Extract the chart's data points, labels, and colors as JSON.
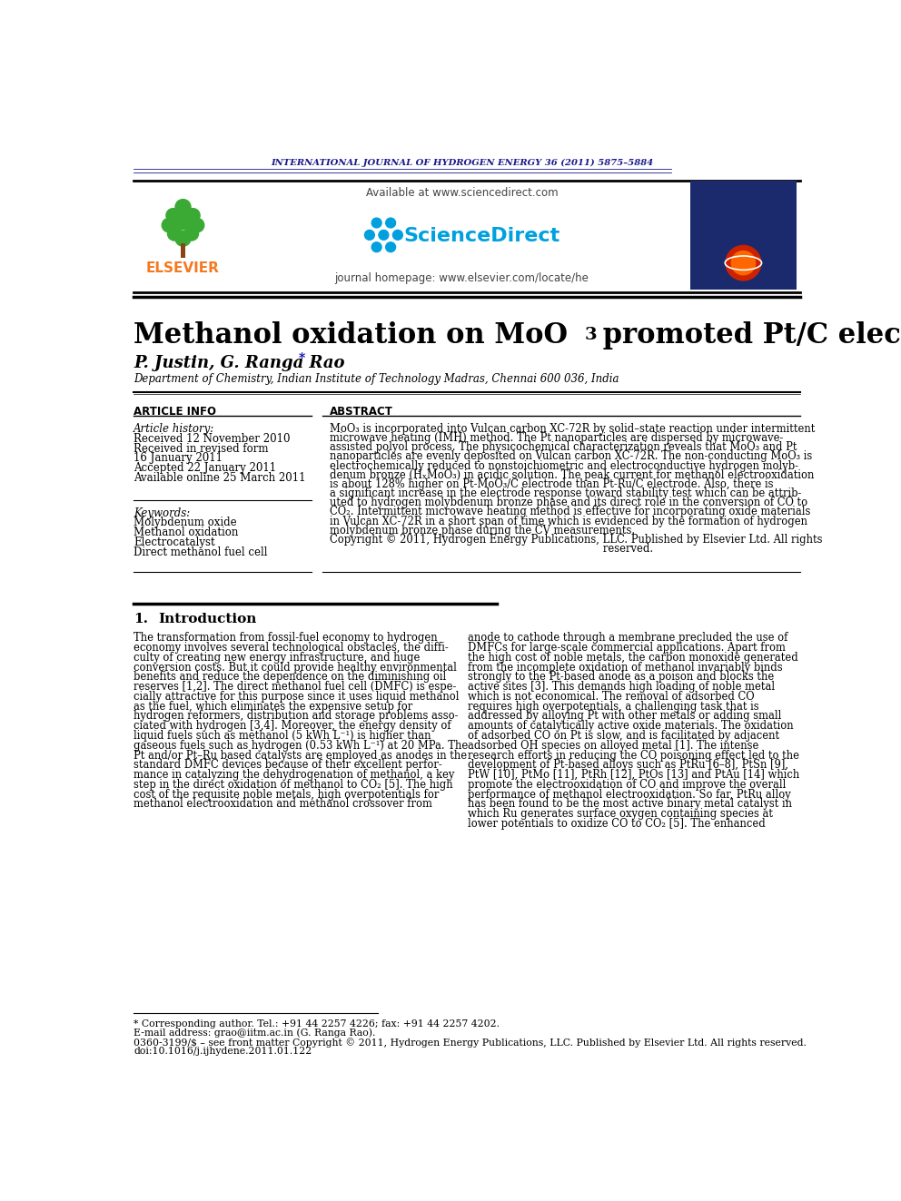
{
  "journal_header": "INTERNATIONAL JOURNAL OF HYDROGEN ENERGY 36 (2011) 5875–5884",
  "journal_header_color": "#1a1a8c",
  "title_part1": "Methanol oxidation on MoO",
  "title_sub": "3",
  "title_part2": " promoted Pt/C electrocatalyst",
  "authors": "P. Justin, G. Ranga Rao",
  "author_star": "*",
  "affiliation": "Department of Chemistry, Indian Institute of Technology Madras, Chennai 600 036, India",
  "article_info_header": "ARTICLE INFO",
  "abstract_header": "ABSTRACT",
  "article_history_label": "Article history:",
  "history_items": [
    "Received 12 November 2010",
    "Received in revised form",
    "16 January 2011",
    "Accepted 22 January 2011",
    "Available online 25 March 2011"
  ],
  "keywords_label": "Keywords:",
  "keywords": [
    "Molybdenum oxide",
    "Methanol oxidation",
    "Electrocatalyst",
    "Direct methanol fuel cell"
  ],
  "abstract_lines": [
    "MoO₃ is incorporated into Vulcan carbon XC-72R by solid–state reaction under intermittent",
    "microwave heating (IMH) method. The Pt nanoparticles are dispersed by microwave-",
    "assisted polyol process. The physicochemical characterization reveals that MoO₃ and Pt",
    "nanoparticles are evenly deposited on Vulcan carbon XC-72R. The non-conducting MoO₃ is",
    "electrochemically reduced to nonstoichiometric and electroconductive hydrogen molyb-",
    "denum bronze (HₓMoO₃) in acidic solution. The peak current for methanol electrooxidation",
    "is about 128% higher on Pt-MoO₃/C electrode than Pt-Ru/C electrode. Also, there is",
    "a significant increase in the electrode response toward stability test which can be attrib-",
    "uted to hydrogen molybdenum bronze phase and its direct role in the conversion of CO to",
    "CO₂. Intermittent microwave heating method is effective for incorporating oxide materials",
    "in Vulcan XC-72R in a short span of time which is evidenced by the formation of hydrogen",
    "molybdenum bronze phase during the CV measurements.",
    "Copyright © 2011, Hydrogen Energy Publications, LLC. Published by Elsevier Ltd. All rights",
    "                                                                                   reserved."
  ],
  "col1_lines": [
    "The transformation from fossil-fuel economy to hydrogen",
    "economy involves several technological obstacles, the diffi-",
    "culty of creating new energy infrastructure, and huge",
    "conversion costs. But it could provide healthy environmental",
    "benefits and reduce the dependence on the diminishing oil",
    "reserves [1,2]. The direct methanol fuel cell (DMFC) is espe-",
    "cially attractive for this purpose since it uses liquid methanol",
    "as the fuel, which eliminates the expensive setup for",
    "hydrogen reformers, distribution and storage problems asso-",
    "ciated with hydrogen [3,4]. Moreover, the energy density of",
    "liquid fuels such as methanol (5 kWh L⁻¹) is higher than",
    "gaseous fuels such as hydrogen (0.53 kWh L⁻¹) at 20 MPa. The",
    "Pt and/or Pt–Ru based catalysts are employed as anodes in the",
    "standard DMFC devices because of their excellent perfor-",
    "mance in catalyzing the dehydrogenation of methanol, a key",
    "step in the direct oxidation of methanol to CO₂ [5]. The high",
    "cost of the requisite noble metals, high overpotentials for",
    "methanol electrooxidation and methanol crossover from"
  ],
  "col2_lines": [
    "anode to cathode through a membrane precluded the use of",
    "DMFCs for large-scale commercial applications. Apart from",
    "the high cost of noble metals, the carbon monoxide generated",
    "from the incomplete oxidation of methanol invariably binds",
    "strongly to the Pt-based anode as a poison and blocks the",
    "active sites [3]. This demands high loading of noble metal",
    "which is not economical. The removal of adsorbed CO",
    "requires high overpotentials, a challenging task that is",
    "addressed by alloying Pt with other metals or adding small",
    "amounts of catalytically active oxide materials. The oxidation",
    "of adsorbed CO on Pt is slow, and is facilitated by adjacent",
    "adsorbed OH species on alloyed metal [1]. The intense",
    "research efforts in reducing the CO poisoning effect led to the",
    "development of Pt-based alloys such as PtRu [6–8], PtSn [9],",
    "PtW [10], PtMo [11], PtRh [12], PtOs [13] and PtAu [14] which",
    "promote the electrooxidation of CO and improve the overall",
    "performance of methanol electrooxidation. So far, PtRu alloy",
    "has been found to be the most active binary metal catalyst in",
    "which Ru generates surface oxygen containing species at",
    "lower potentials to oxidize CO to CO₂ [5]. The enhanced"
  ],
  "footnote1": "* Corresponding author. Tel.: +91 44 2257 4226; fax: +91 44 2257 4202.",
  "footnote2": "E-mail address: grao@iitm.ac.in (G. Ranga Rao).",
  "footnote3": "0360-3199/$ – see front matter Copyright © 2011, Hydrogen Energy Publications, LLC. Published by Elsevier Ltd. All rights reserved.",
  "footnote4": "doi:10.1016/j.ijhydene.2011.01.122",
  "bg_color": "#ffffff",
  "text_color": "#000000",
  "header_blue": "#1a1a8c",
  "elsevier_orange": "#f47920",
  "sd_blue": "#00a0df",
  "tree_green": "#3aaa35"
}
